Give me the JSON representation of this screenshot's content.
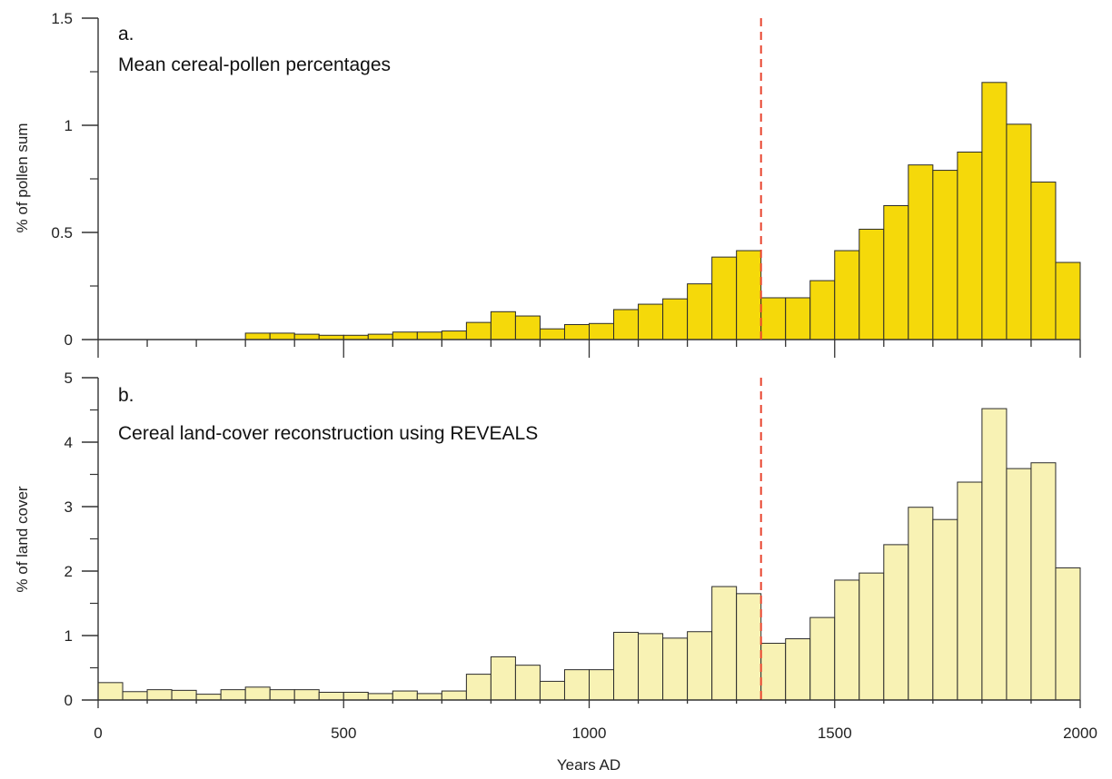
{
  "chart_data": [
    {
      "type": "bar",
      "panel_label": "a.",
      "title": "Mean cereal-pollen percentages",
      "ylabel": "% of pollen sum",
      "xlabel": "",
      "ylim": [
        0,
        1.5
      ],
      "yticks": [
        0,
        0.5,
        1,
        1.5
      ],
      "ytick_labels": [
        "0",
        "0.5",
        "1",
        "1.5"
      ],
      "xlim": [
        0,
        2000
      ],
      "bin_width": 50,
      "bar_color": "#f5d90a",
      "marker_line_x": 1350,
      "marker_line_color": "#e8442e",
      "x": [
        300,
        350,
        400,
        450,
        500,
        550,
        600,
        650,
        700,
        750,
        800,
        850,
        900,
        950,
        1000,
        1050,
        1100,
        1150,
        1200,
        1250,
        1300,
        1350,
        1400,
        1450,
        1500,
        1550,
        1600,
        1650,
        1700,
        1750,
        1800,
        1850,
        1900,
        1950
      ],
      "values": [
        0.03,
        0.03,
        0.025,
        0.02,
        0.02,
        0.025,
        0.035,
        0.035,
        0.04,
        0.08,
        0.13,
        0.11,
        0.05,
        0.07,
        0.075,
        0.14,
        0.165,
        0.19,
        0.26,
        0.385,
        0.415,
        0.195,
        0.195,
        0.275,
        0.415,
        0.515,
        0.625,
        0.815,
        0.79,
        0.875,
        1.2,
        1.005,
        0.735,
        0.36
      ]
    },
    {
      "type": "bar",
      "panel_label": "b.",
      "title": "Cereal land-cover reconstruction using REVEALS",
      "ylabel": "% of land cover",
      "xlabel": "Years AD",
      "ylim": [
        0,
        5
      ],
      "yticks": [
        0,
        1,
        2,
        3,
        4,
        5
      ],
      "ytick_labels": [
        "0",
        "1",
        "2",
        "3",
        "4",
        "5"
      ],
      "xlim": [
        0,
        2000
      ],
      "xticks": [
        0,
        500,
        1000,
        1500,
        2000
      ],
      "xtick_labels": [
        "0",
        "500",
        "1000",
        "1500",
        "2000"
      ],
      "bin_width": 50,
      "bar_color": "#f8f2b4",
      "marker_line_x": 1350,
      "marker_line_color": "#e8442e",
      "x": [
        0,
        50,
        100,
        150,
        200,
        250,
        300,
        350,
        400,
        450,
        500,
        550,
        600,
        650,
        700,
        750,
        800,
        850,
        900,
        950,
        1000,
        1050,
        1100,
        1150,
        1200,
        1250,
        1300,
        1350,
        1400,
        1450,
        1500,
        1550,
        1600,
        1650,
        1700,
        1750,
        1800,
        1850,
        1900,
        1950
      ],
      "values": [
        0.27,
        0.13,
        0.16,
        0.15,
        0.09,
        0.16,
        0.2,
        0.16,
        0.16,
        0.12,
        0.12,
        0.1,
        0.14,
        0.1,
        0.14,
        0.4,
        0.67,
        0.54,
        0.29,
        0.47,
        0.47,
        1.05,
        1.03,
        0.96,
        1.06,
        1.76,
        1.65,
        0.88,
        0.95,
        1.28,
        1.86,
        1.97,
        2.41,
        2.99,
        2.8,
        3.38,
        4.52,
        3.59,
        3.68,
        2.05
      ]
    }
  ]
}
